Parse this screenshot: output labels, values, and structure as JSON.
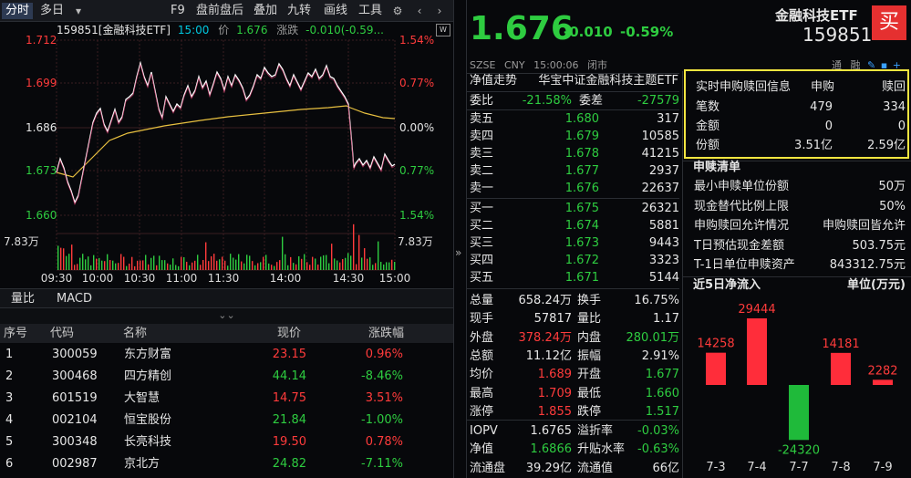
{
  "toolbar": {
    "tabs": [
      "分时",
      "多日"
    ],
    "menu": [
      "F9",
      "盘前盘后",
      "叠加",
      "九转",
      "画线",
      "工具"
    ]
  },
  "chart": {
    "code_name": "159851[金融科技ETF]",
    "time": "15:00",
    "price_label": "价",
    "price": "1.676",
    "chg_label": "涨跌",
    "chg": "-0.010(-0.59...",
    "y_left": [
      "1.712",
      "1.699",
      "1.686",
      "1.673",
      "1.660"
    ],
    "y_right": [
      "1.54%",
      "0.77%",
      "0.00%",
      "0.77%",
      "1.54%"
    ],
    "vol_left": "7.83万",
    "vol_right": "7.83万",
    "x_labels": [
      "09:30",
      "10:00",
      "10:30",
      "11:00",
      "11:30",
      "14:00",
      "14:30",
      "15:00"
    ]
  },
  "subtabs": [
    "量比",
    "MACD"
  ],
  "stock_list": {
    "headers": [
      "序号",
      "代码",
      "名称",
      "现价",
      "涨跌幅"
    ],
    "rows": [
      {
        "idx": "1",
        "code": "300059",
        "name": "东方财富",
        "price": "23.15",
        "chg": "0.96%",
        "up": true
      },
      {
        "idx": "2",
        "code": "300468",
        "name": "四方精创",
        "price": "44.14",
        "chg": "-8.46%",
        "up": false
      },
      {
        "idx": "3",
        "code": "601519",
        "name": "大智慧",
        "price": "14.75",
        "chg": "3.51%",
        "up": true
      },
      {
        "idx": "4",
        "code": "002104",
        "name": "恒宝股份",
        "price": "21.84",
        "chg": "-1.00%",
        "up": false
      },
      {
        "idx": "5",
        "code": "300348",
        "name": "长亮科技",
        "price": "19.50",
        "chg": "0.78%",
        "up": true
      },
      {
        "idx": "6",
        "code": "002987",
        "name": "京北方",
        "price": "24.82",
        "chg": "-7.11%",
        "up": false
      }
    ]
  },
  "quote": {
    "price": "1.676",
    "change": "-0.010",
    "pct": "-0.59%",
    "title": "金融科技ETF",
    "code": "159851",
    "buy_label": "买",
    "market": "SZSE",
    "currency": "CNY",
    "time": "15:00:06",
    "status": "闭市",
    "tools": [
      "通",
      "融"
    ],
    "index_label": "净值走势",
    "index_name": "华宝中证金融科技主题ETF",
    "webi": {
      "label": "委比",
      "pct": "-21.58%",
      "diff_label": "委差",
      "diff": "-27579"
    },
    "asks": [
      {
        "l": "卖五",
        "p": "1.680",
        "v": "317"
      },
      {
        "l": "卖四",
        "p": "1.679",
        "v": "10585"
      },
      {
        "l": "卖三",
        "p": "1.678",
        "v": "41215"
      },
      {
        "l": "卖二",
        "p": "1.677",
        "v": "2937"
      },
      {
        "l": "卖一",
        "p": "1.676",
        "v": "22637"
      }
    ],
    "bids": [
      {
        "l": "买一",
        "p": "1.675",
        "v": "26321"
      },
      {
        "l": "买二",
        "p": "1.674",
        "v": "5881"
      },
      {
        "l": "买三",
        "p": "1.673",
        "v": "9443"
      },
      {
        "l": "买四",
        "p": "1.672",
        "v": "3323"
      },
      {
        "l": "买五",
        "p": "1.671",
        "v": "5144"
      }
    ],
    "stats": [
      {
        "l1": "总量",
        "v1": "658.24万",
        "c1": "wht",
        "l2": "换手",
        "v2": "16.75%",
        "c2": "wht"
      },
      {
        "l1": "现手",
        "v1": "57817",
        "c1": "wht",
        "l2": "量比",
        "v2": "1.17",
        "c2": "wht"
      },
      {
        "l1": "外盘",
        "v1": "378.24万",
        "c1": "red",
        "l2": "内盘",
        "v2": "280.01万",
        "c2": "grn"
      },
      {
        "l1": "总额",
        "v1": "11.12亿",
        "c1": "wht",
        "l2": "振幅",
        "v2": "2.91%",
        "c2": "wht"
      },
      {
        "l1": "均价",
        "v1": "1.689",
        "c1": "red",
        "l2": "开盘",
        "v2": "1.677",
        "c2": "grn"
      },
      {
        "l1": "最高",
        "v1": "1.709",
        "c1": "red",
        "l2": "最低",
        "v2": "1.660",
        "c2": "grn"
      },
      {
        "l1": "涨停",
        "v1": "1.855",
        "c1": "red",
        "l2": "跌停",
        "v2": "1.517",
        "c2": "grn"
      },
      {
        "l1": "IOPV",
        "v1": "1.6765",
        "c1": "wht",
        "l2": "溢折率",
        "v2": "-0.03%",
        "c2": "grn"
      },
      {
        "l1": "净值",
        "v1": "1.6866",
        "c1": "grn",
        "l2": "升贴水率",
        "v2": "-0.63%",
        "c2": "grn"
      },
      {
        "l1": "流通盘",
        "v1": "39.29亿",
        "c1": "wht",
        "l2": "流通值",
        "v2": "66亿",
        "c2": "wht"
      }
    ]
  },
  "realtime": {
    "title": "实时申购赎回信息",
    "h1": "申购",
    "h2": "赎回",
    "rows": [
      {
        "l": "笔数",
        "a": "479",
        "b": "334"
      },
      {
        "l": "金额",
        "a": "0",
        "b": "0"
      },
      {
        "l": "份额",
        "a": "3.51亿",
        "b": "2.59亿"
      }
    ]
  },
  "redeem": {
    "title": "申赎清单",
    "rows": [
      {
        "l": "最小申赎单位份额",
        "v": "50万"
      },
      {
        "l": "现金替代比例上限",
        "v": "50%"
      },
      {
        "l": "申购赎回允许情况",
        "v": "申购赎回皆允许"
      },
      {
        "l": "T日预估现金差额",
        "v": "503.75元"
      },
      {
        "l": "T-1日单位申赎资产",
        "v": "843312.75元"
      }
    ]
  },
  "flow": {
    "title": "近5日净流入",
    "unit": "单位(万元)",
    "chart_data": {
      "type": "bar",
      "categories": [
        "7-3",
        "7-4",
        "7-7",
        "7-8",
        "7-9"
      ],
      "values": [
        14258,
        29444,
        -24320,
        14181,
        2282
      ]
    }
  }
}
